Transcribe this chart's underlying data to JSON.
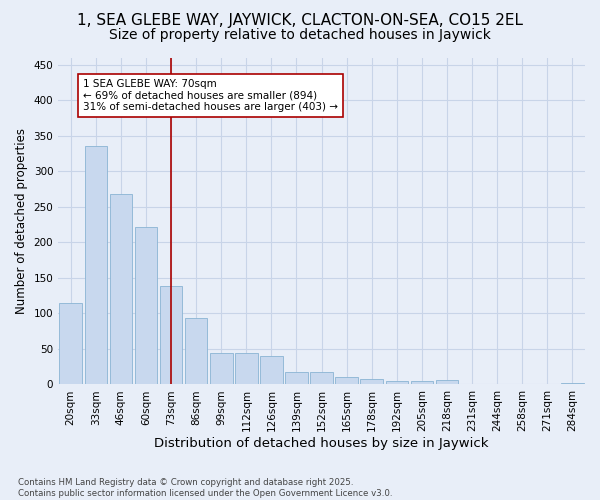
{
  "title": "1, SEA GLEBE WAY, JAYWICK, CLACTON-ON-SEA, CO15 2EL",
  "subtitle": "Size of property relative to detached houses in Jaywick",
  "xlabel": "Distribution of detached houses by size in Jaywick",
  "ylabel": "Number of detached properties",
  "categories": [
    "20sqm",
    "33sqm",
    "46sqm",
    "60sqm",
    "73sqm",
    "86sqm",
    "99sqm",
    "112sqm",
    "126sqm",
    "139sqm",
    "152sqm",
    "165sqm",
    "178sqm",
    "192sqm",
    "205sqm",
    "218sqm",
    "231sqm",
    "244sqm",
    "258sqm",
    "271sqm",
    "284sqm"
  ],
  "values": [
    115,
    335,
    268,
    221,
    138,
    94,
    44,
    44,
    40,
    17,
    17,
    10,
    7,
    5,
    5,
    6,
    1,
    0,
    0,
    0,
    2
  ],
  "bar_color": "#c8d8ee",
  "bar_edge_color": "#8ab4d4",
  "vline_x_index": 4,
  "vline_color": "#aa0000",
  "annotation_text": "1 SEA GLEBE WAY: 70sqm\n← 69% of detached houses are smaller (894)\n31% of semi-detached houses are larger (403) →",
  "annotation_box_color": "#ffffff",
  "annotation_box_edge_color": "#aa0000",
  "ylim": [
    0,
    460
  ],
  "yticks": [
    0,
    50,
    100,
    150,
    200,
    250,
    300,
    350,
    400,
    450
  ],
  "title_fontsize": 11,
  "subtitle_fontsize": 10,
  "xlabel_fontsize": 9.5,
  "ylabel_fontsize": 8.5,
  "tick_fontsize": 7.5,
  "annotation_fontsize": 7.5,
  "footer_text": "Contains HM Land Registry data © Crown copyright and database right 2025.\nContains public sector information licensed under the Open Government Licence v3.0.",
  "background_color": "#e8eef8",
  "plot_bg_color": "#e8eef8",
  "grid_color": "#c8d4e8"
}
